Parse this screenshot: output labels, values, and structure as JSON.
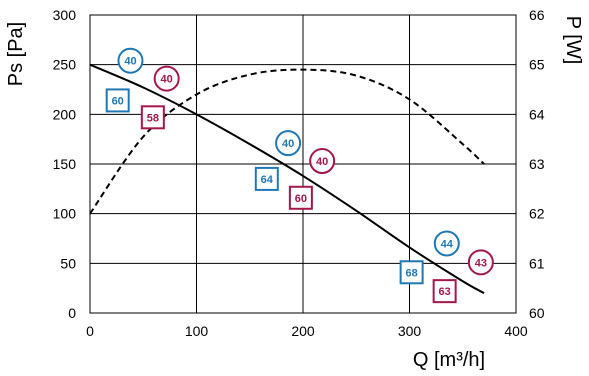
{
  "chart_data": {
    "type": "line",
    "title": "",
    "xlabel": "Q [m³/h]",
    "ylabel_left": "Ps [Pa]",
    "ylabel_right": "P [W]",
    "xlim": [
      0,
      400
    ],
    "ylim_left": [
      0,
      300
    ],
    "ylim_right": [
      60,
      66
    ],
    "x_ticks": [
      0,
      100,
      200,
      300,
      400
    ],
    "y_ticks_left": [
      0,
      50,
      100,
      150,
      200,
      250,
      300
    ],
    "y_ticks_right": [
      60,
      61,
      62,
      63,
      64,
      65,
      66
    ],
    "grid": true,
    "colors": {
      "blue": "#1f77b4",
      "red": "#a3174a",
      "line": "#000000"
    },
    "series": [
      {
        "axis": "left",
        "style": "solid",
        "x": [
          0,
          50,
          100,
          150,
          200,
          250,
          300,
          350,
          370
        ],
        "y": [
          250,
          227,
          200,
          170,
          138,
          103,
          66,
          32,
          20
        ]
      },
      {
        "axis": "right",
        "style": "dashed",
        "x": [
          0,
          50,
          100,
          150,
          200,
          250,
          300,
          350,
          370
        ],
        "y": [
          62.0,
          63.55,
          64.4,
          64.8,
          64.9,
          64.78,
          64.3,
          63.4,
          63.0
        ]
      }
    ],
    "markers": [
      {
        "shape": "circle",
        "color": "blue",
        "label": "40",
        "x": 38,
        "y": 254
      },
      {
        "shape": "circle",
        "color": "red",
        "label": "40",
        "x": 72,
        "y": 236
      },
      {
        "shape": "square",
        "color": "blue",
        "label": "60",
        "x": 26,
        "y": 214
      },
      {
        "shape": "square",
        "color": "red",
        "label": "58",
        "x": 59,
        "y": 197
      },
      {
        "shape": "circle",
        "color": "blue",
        "label": "40",
        "x": 186,
        "y": 171
      },
      {
        "shape": "circle",
        "color": "red",
        "label": "40",
        "x": 218,
        "y": 153
      },
      {
        "shape": "square",
        "color": "blue",
        "label": "64",
        "x": 166,
        "y": 135
      },
      {
        "shape": "square",
        "color": "red",
        "label": "60",
        "x": 198,
        "y": 116
      },
      {
        "shape": "circle",
        "color": "blue",
        "label": "44",
        "x": 335,
        "y": 70
      },
      {
        "shape": "circle",
        "color": "red",
        "label": "43",
        "x": 367,
        "y": 51
      },
      {
        "shape": "square",
        "color": "blue",
        "label": "68",
        "x": 302,
        "y": 41
      },
      {
        "shape": "square",
        "color": "red",
        "label": "63",
        "x": 333,
        "y": 22
      }
    ]
  }
}
